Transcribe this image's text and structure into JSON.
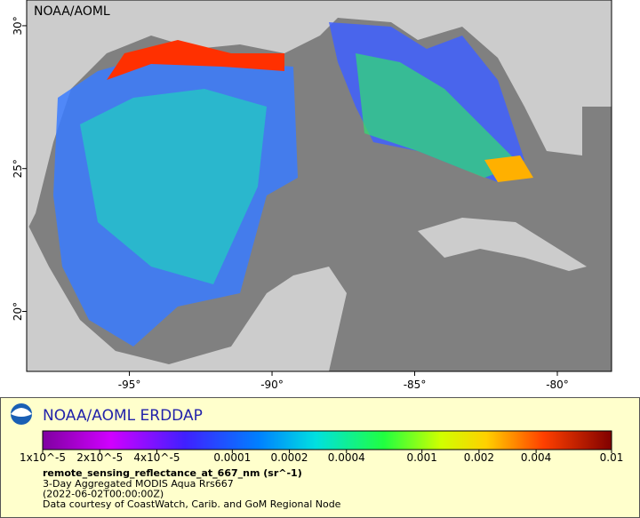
{
  "map": {
    "label": "NOAA/AOML",
    "xlim": [
      -98.6,
      -78.1
    ],
    "ylim": [
      17.9,
      30.9
    ],
    "xticks": [
      {
        "value": -95,
        "label": "-95°"
      },
      {
        "value": -90,
        "label": "-90°"
      },
      {
        "value": -85,
        "label": "-85°"
      },
      {
        "value": -80,
        "label": "-80°"
      }
    ],
    "yticks": [
      {
        "value": 20,
        "label": "20°"
      },
      {
        "value": 25,
        "label": "25°"
      },
      {
        "value": 30,
        "label": "30°"
      }
    ]
  },
  "legend": {
    "title": "NOAA/AOML ERDDAP",
    "colorbar": {
      "scale": "log",
      "lim": [
        1e-05,
        0.01
      ],
      "ticks": [
        {
          "value": 1e-05,
          "label": "1x10^-5"
        },
        {
          "value": 2e-05,
          "label": "2x10^-5"
        },
        {
          "value": 4e-05,
          "label": "4x10^-5"
        },
        {
          "value": 0.0001,
          "label": "0.0001"
        },
        {
          "value": 0.0002,
          "label": "0.0002"
        },
        {
          "value": 0.0004,
          "label": "0.0004"
        },
        {
          "value": 0.001,
          "label": "0.001"
        },
        {
          "value": 0.002,
          "label": "0.002"
        },
        {
          "value": 0.004,
          "label": "0.004"
        },
        {
          "value": 0.01,
          "label": "0.01"
        }
      ]
    },
    "variable": "remote_sensing_reflectance_at_667_nm (sr^-1)",
    "lines": [
      "3-Day Aggregated MODIS Aqua Rrs667",
      "(2022-06-02T00:00:00Z)",
      "Data courtesy of CoastWatch, Carib. and GoM Regional Node"
    ]
  }
}
